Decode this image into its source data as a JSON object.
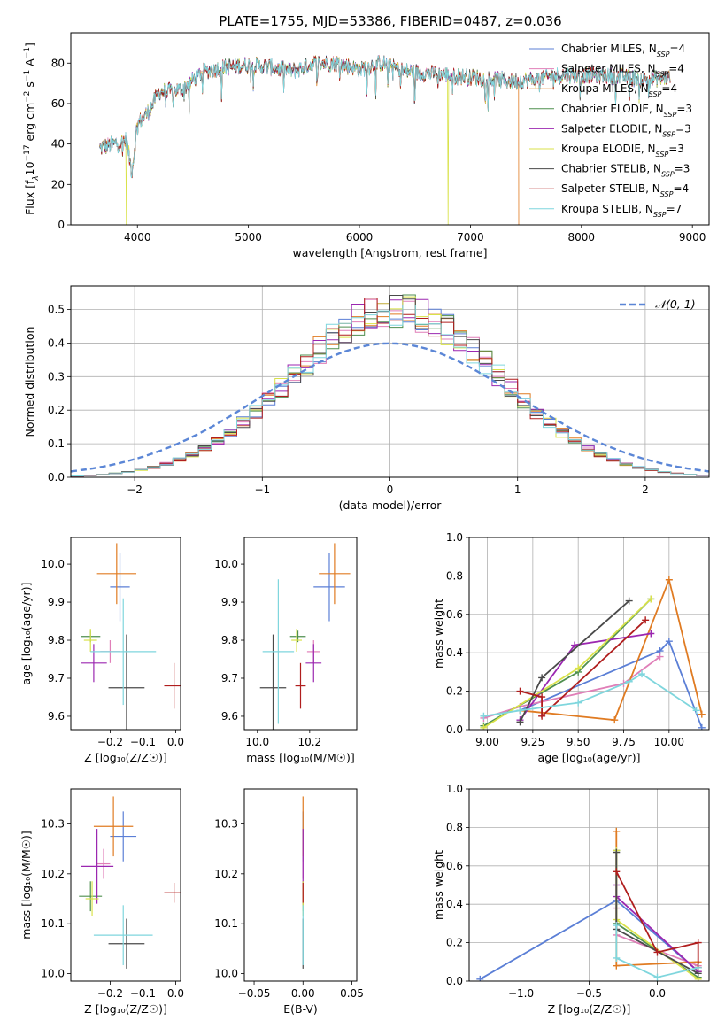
{
  "figure_title": "PLATE=1755, MJD=53386, FIBERID=0487, z=0.036",
  "colors": {
    "Chabrier MILES": "#5b7fd6",
    "Salpeter MILES": "#e07fb8",
    "Kroupa MILES": "#e07b22",
    "Chabrier ELODIE": "#4f8f4f",
    "Salpeter ELODIE": "#9b27b0",
    "Kroupa ELODIE": "#d9e24a",
    "Chabrier STELIB": "#4a4a4a",
    "Salpeter STELIB": "#b01e1e",
    "Kroupa STELIB": "#7fd6dd",
    "normal": "#5b86d6",
    "grid": "#b0b0b0"
  },
  "chart_data": [
    {
      "id": "spectrum",
      "type": "line",
      "xlabel": "wavelength [Angstrom, rest frame]",
      "ylabel": "Flux [f_λ10^-17 erg cm^-2 s^-1 A^-1]",
      "xlim": [
        3400,
        9150
      ],
      "ylim": [
        0,
        95
      ],
      "xticks": [
        4000,
        5000,
        6000,
        7000,
        8000,
        9000
      ],
      "yticks": [
        0,
        20,
        40,
        60,
        80
      ],
      "grid": false,
      "legend_position": "right",
      "legend": [
        "Chabrier MILES, N_SSP=4",
        "Salpeter MILES, N_SSP=4",
        "Kroupa MILES, N_SSP=4",
        "Chabrier ELODIE, N_SSP=3",
        "Salpeter ELODIE, N_SSP=3",
        "Kroupa ELODIE, N_SSP=3",
        "Chabrier STELIB, N_SSP=3",
        "Salpeter STELIB, N_SSP=4",
        "Kroupa STELIB, N_SSP=7"
      ],
      "approx_continuum": {
        "x": [
          3660,
          3800,
          3900,
          3950,
          4000,
          4100,
          4200,
          4300,
          4400,
          4600,
          4800,
          5000,
          5200,
          5400,
          5600,
          5800,
          6000,
          6200,
          6400,
          6600,
          6800,
          7000,
          7200,
          7400,
          7600,
          7800,
          8000,
          8200,
          8400,
          8600,
          8800
        ],
        "y": [
          38,
          40,
          42,
          26,
          50,
          56,
          66,
          66,
          67,
          76,
          78,
          79,
          78,
          76,
          80,
          80,
          77,
          80,
          76,
          75,
          74,
          73,
          72,
          71,
          72,
          74,
          74,
          74,
          73,
          72,
          73
        ]
      },
      "dropouts": [
        {
          "series": "Kroupa ELODIE",
          "x": 3900
        },
        {
          "series": "Kroupa ELODIE",
          "x": 6800
        },
        {
          "series": "Kroupa MILES",
          "x": 7430
        }
      ]
    },
    {
      "id": "residuals",
      "type": "line",
      "xlabel": "(data-model)/error",
      "ylabel": "Normed distribution",
      "xlim": [
        -2.5,
        2.5
      ],
      "ylim": [
        0,
        0.57
      ],
      "xticks": [
        -2,
        -1,
        0,
        1,
        2
      ],
      "yticks": [
        0.0,
        0.1,
        0.2,
        0.3,
        0.4,
        0.5
      ],
      "grid": true,
      "legend_position": "top-right",
      "legend": [
        "𝒩(0, 1)"
      ],
      "histogram": {
        "bin_width": 0.1,
        "edges_from": -2.5,
        "bins": 50,
        "amplitude": 0.5,
        "sigma": 0.8
      }
    },
    {
      "id": "age-vs-Z",
      "type": "scatter",
      "xlabel": "Z [log₁₀(Z/Z☉)]",
      "ylabel": "age  [log₁₀(age/yr)]",
      "xlim": [
        -0.32,
        0.015
      ],
      "ylim": [
        9.565,
        10.07
      ],
      "xticks": [
        -0.2,
        -0.1,
        0.0
      ],
      "yticks": [
        9.6,
        9.7,
        9.8,
        9.9,
        10.0
      ],
      "grid": false,
      "points": [
        {
          "series": "Chabrier MILES",
          "x": -0.17,
          "y": 9.94,
          "xerr": 0.03,
          "yerr": 0.09
        },
        {
          "series": "Salpeter MILES",
          "x": -0.2,
          "y": 9.77,
          "xerr": 0.03,
          "yerr": 0.03
        },
        {
          "series": "Kroupa MILES",
          "x": -0.18,
          "y": 9.975,
          "xerr": 0.06,
          "yerr": 0.08
        },
        {
          "series": "Chabrier ELODIE",
          "x": -0.26,
          "y": 9.81,
          "xerr": 0.03,
          "yerr": 0.015
        },
        {
          "series": "Salpeter ELODIE",
          "x": -0.25,
          "y": 9.74,
          "xerr": 0.04,
          "yerr": 0.05
        },
        {
          "series": "Kroupa ELODIE",
          "x": -0.26,
          "y": 9.8,
          "xerr": 0.02,
          "yerr": 0.03
        },
        {
          "series": "Chabrier STELIB",
          "x": -0.15,
          "y": 9.675,
          "xerr": 0.055,
          "yerr": 0.14
        },
        {
          "series": "Salpeter STELIB",
          "x": -0.005,
          "y": 9.68,
          "xerr": 0.03,
          "yerr": 0.06
        },
        {
          "series": "Kroupa STELIB",
          "x": -0.16,
          "y": 9.77,
          "xerr": 0.1,
          "yerr": 0.14
        }
      ]
    },
    {
      "id": "age-vs-mass",
      "type": "scatter",
      "xlabel": "mass [log₁₀(M/M☉)]",
      "ylabel": "",
      "xlim": [
        9.95,
        10.38
      ],
      "ylim": [
        9.565,
        10.07
      ],
      "xticks": [
        10.0,
        10.2
      ],
      "yticks": [
        9.6,
        9.7,
        9.8,
        9.9,
        10.0
      ],
      "grid": false,
      "points": [
        {
          "series": "Chabrier MILES",
          "x": 10.275,
          "y": 9.94,
          "xerr": 0.06,
          "yerr": 0.09
        },
        {
          "series": "Salpeter MILES",
          "x": 10.215,
          "y": 9.77,
          "xerr": 0.025,
          "yerr": 0.03
        },
        {
          "series": "Kroupa MILES",
          "x": 10.295,
          "y": 9.975,
          "xerr": 0.06,
          "yerr": 0.08
        },
        {
          "series": "Chabrier ELODIE",
          "x": 10.155,
          "y": 9.81,
          "xerr": 0.03,
          "yerr": 0.015
        },
        {
          "series": "Salpeter ELODIE",
          "x": 10.215,
          "y": 9.74,
          "xerr": 0.03,
          "yerr": 0.05
        },
        {
          "series": "Kroupa ELODIE",
          "x": 10.15,
          "y": 9.8,
          "xerr": 0.02,
          "yerr": 0.03
        },
        {
          "series": "Chabrier STELIB",
          "x": 10.06,
          "y": 9.675,
          "xerr": 0.05,
          "yerr": 0.14
        },
        {
          "series": "Salpeter STELIB",
          "x": 10.165,
          "y": 9.68,
          "xerr": 0.02,
          "yerr": 0.06
        },
        {
          "series": "Kroupa STELIB",
          "x": 10.08,
          "y": 9.77,
          "xerr": 0.06,
          "yerr": 0.19
        }
      ]
    },
    {
      "id": "weight-vs-age",
      "type": "line",
      "xlabel": "age  [log₁₀(age/yr)]",
      "ylabel": "mass weight",
      "xlim": [
        8.9,
        10.22
      ],
      "ylim": [
        0.0,
        1.0
      ],
      "xticks": [
        9.0,
        9.25,
        9.5,
        9.75,
        10.0
      ],
      "yticks": [
        0.0,
        0.2,
        0.4,
        0.6,
        0.8,
        1.0
      ],
      "grid": true,
      "series": [
        {
          "series": "Chabrier MILES",
          "x": [
            9.18,
            9.95,
            10.0,
            10.18
          ],
          "y": [
            0.1,
            0.41,
            0.46,
            0.01
          ]
        },
        {
          "series": "Salpeter MILES",
          "x": [
            8.98,
            9.18,
            9.75,
            9.95
          ],
          "y": [
            0.06,
            0.12,
            0.24,
            0.38
          ]
        },
        {
          "series": "Kroupa MILES",
          "x": [
            9.18,
            9.7,
            10.0,
            10.18
          ],
          "y": [
            0.1,
            0.05,
            0.78,
            0.08
          ]
        },
        {
          "series": "Chabrier ELODIE",
          "x": [
            8.98,
            9.5,
            9.9
          ],
          "y": [
            0.02,
            0.3,
            0.68
          ]
        },
        {
          "series": "Salpeter ELODIE",
          "x": [
            9.18,
            9.48,
            9.9
          ],
          "y": [
            0.05,
            0.44,
            0.5
          ]
        },
        {
          "series": "Kroupa ELODIE",
          "x": [
            8.98,
            9.5,
            9.9
          ],
          "y": [
            0.01,
            0.32,
            0.68
          ]
        },
        {
          "series": "Chabrier STELIB",
          "x": [
            9.18,
            9.3,
            9.78
          ],
          "y": [
            0.04,
            0.27,
            0.67
          ]
        },
        {
          "series": "Salpeter STELIB",
          "x": [
            9.18,
            9.3,
            9.3,
            9.87
          ],
          "y": [
            0.2,
            0.17,
            0.07,
            0.57
          ]
        },
        {
          "series": "Kroupa STELIB",
          "x": [
            8.98,
            9.18,
            9.5,
            9.78,
            9.85,
            10.15
          ],
          "y": [
            0.07,
            0.1,
            0.14,
            0.25,
            0.29,
            0.1
          ]
        }
      ]
    },
    {
      "id": "mass-vs-Z",
      "type": "scatter",
      "xlabel": "Z [log₁₀(Z/Z☉)]",
      "ylabel": "mass [log₁₀(M/M☉)]",
      "xlim": [
        -0.32,
        0.015
      ],
      "ylim": [
        9.985,
        10.37
      ],
      "xticks": [
        -0.2,
        -0.1,
        0.0
      ],
      "yticks": [
        10.0,
        10.1,
        10.2,
        10.3
      ],
      "grid": false,
      "points": [
        {
          "series": "Chabrier MILES",
          "x": -0.16,
          "y": 10.275,
          "xerr": 0.04,
          "yerr": 0.05
        },
        {
          "series": "Salpeter MILES",
          "x": -0.22,
          "y": 10.22,
          "xerr": 0.02,
          "yerr": 0.03
        },
        {
          "series": "Kroupa MILES",
          "x": -0.19,
          "y": 10.295,
          "xerr": 0.06,
          "yerr": 0.06
        },
        {
          "series": "Chabrier ELODIE",
          "x": -0.26,
          "y": 10.155,
          "xerr": 0.035,
          "yerr": 0.03
        },
        {
          "series": "Salpeter ELODIE",
          "x": -0.24,
          "y": 10.215,
          "xerr": 0.05,
          "yerr": 0.075
        },
        {
          "series": "Kroupa ELODIE",
          "x": -0.255,
          "y": 10.15,
          "xerr": 0.02,
          "yerr": 0.035
        },
        {
          "series": "Chabrier STELIB",
          "x": -0.15,
          "y": 10.06,
          "xerr": 0.055,
          "yerr": 0.05
        },
        {
          "series": "Salpeter STELIB",
          "x": -0.005,
          "y": 10.162,
          "xerr": 0.03,
          "yerr": 0.02
        },
        {
          "series": "Kroupa STELIB",
          "x": -0.16,
          "y": 10.077,
          "xerr": 0.09,
          "yerr": 0.06
        }
      ]
    },
    {
      "id": "mass-vs-EBV",
      "type": "scatter",
      "xlabel": "E(B-V)",
      "ylabel": "",
      "xlim": [
        -0.06,
        0.055
      ],
      "ylim": [
        9.985,
        10.37
      ],
      "xticks": [
        -0.05,
        0.0,
        0.05
      ],
      "yticks": [
        10.0,
        10.1,
        10.2,
        10.3
      ],
      "grid": false,
      "points": [
        {
          "series": "Chabrier MILES",
          "x": 0.0,
          "y": 10.275,
          "xerr": 0.0,
          "yerr": 0.05
        },
        {
          "series": "Salpeter MILES",
          "x": 0.0,
          "y": 10.22,
          "xerr": 0.0,
          "yerr": 0.03
        },
        {
          "series": "Kroupa MILES",
          "x": 0.0,
          "y": 10.295,
          "xerr": 0.0,
          "yerr": 0.06
        },
        {
          "series": "Chabrier ELODIE",
          "x": 0.0,
          "y": 10.155,
          "xerr": 0.0,
          "yerr": 0.03
        },
        {
          "series": "Salpeter ELODIE",
          "x": 0.0,
          "y": 10.215,
          "xerr": 0.0,
          "yerr": 0.075
        },
        {
          "series": "Kroupa ELODIE",
          "x": 0.0,
          "y": 10.15,
          "xerr": 0.0,
          "yerr": 0.035
        },
        {
          "series": "Chabrier STELIB",
          "x": 0.0,
          "y": 10.06,
          "xerr": 0.0,
          "yerr": 0.05
        },
        {
          "series": "Salpeter STELIB",
          "x": 0.0,
          "y": 10.162,
          "xerr": 0.0,
          "yerr": 0.02
        },
        {
          "series": "Kroupa STELIB",
          "x": 0.0,
          "y": 10.077,
          "xerr": 0.0,
          "yerr": 0.06
        }
      ]
    },
    {
      "id": "weight-vs-Z",
      "type": "line",
      "xlabel": "Z [log₁₀(Z/Z☉)]",
      "ylabel": "mass weight",
      "xlim": [
        -1.38,
        0.38
      ],
      "ylim": [
        0.0,
        1.0
      ],
      "xticks": [
        -1.0,
        -0.5,
        0.0
      ],
      "yticks": [
        0.0,
        0.2,
        0.4,
        0.6,
        0.8,
        1.0
      ],
      "grid": true,
      "series": [
        {
          "series": "Chabrier MILES",
          "x": [
            -1.3,
            -0.3,
            0.3
          ],
          "y": [
            0.01,
            0.42,
            0.05
          ]
        },
        {
          "series": "Salpeter MILES",
          "x": [
            -0.3,
            -0.3,
            0.3
          ],
          "y": [
            0.38,
            0.24,
            0.08
          ]
        },
        {
          "series": "Kroupa MILES",
          "x": [
            -0.3,
            -0.3,
            0.3,
            0.3
          ],
          "y": [
            0.78,
            0.08,
            0.1,
            0.05
          ]
        },
        {
          "series": "Chabrier ELODIE",
          "x": [
            -0.3,
            -0.3,
            0.3
          ],
          "y": [
            0.68,
            0.3,
            0.02
          ]
        },
        {
          "series": "Salpeter ELODIE",
          "x": [
            -0.3,
            -0.3,
            0.3
          ],
          "y": [
            0.5,
            0.44,
            0.05
          ]
        },
        {
          "series": "Kroupa ELODIE",
          "x": [
            -0.3,
            -0.3,
            0.3
          ],
          "y": [
            0.68,
            0.32,
            0.01
          ]
        },
        {
          "series": "Chabrier STELIB",
          "x": [
            -0.3,
            -0.3,
            0.3
          ],
          "y": [
            0.67,
            0.27,
            0.04
          ]
        },
        {
          "series": "Salpeter STELIB",
          "x": [
            -0.3,
            0.0,
            0.3,
            0.3
          ],
          "y": [
            0.57,
            0.15,
            0.2,
            0.07
          ]
        },
        {
          "series": "Kroupa STELIB",
          "x": [
            -0.3,
            -0.3,
            0.0,
            0.3
          ],
          "y": [
            0.29,
            0.12,
            0.02,
            0.07
          ]
        }
      ]
    }
  ]
}
